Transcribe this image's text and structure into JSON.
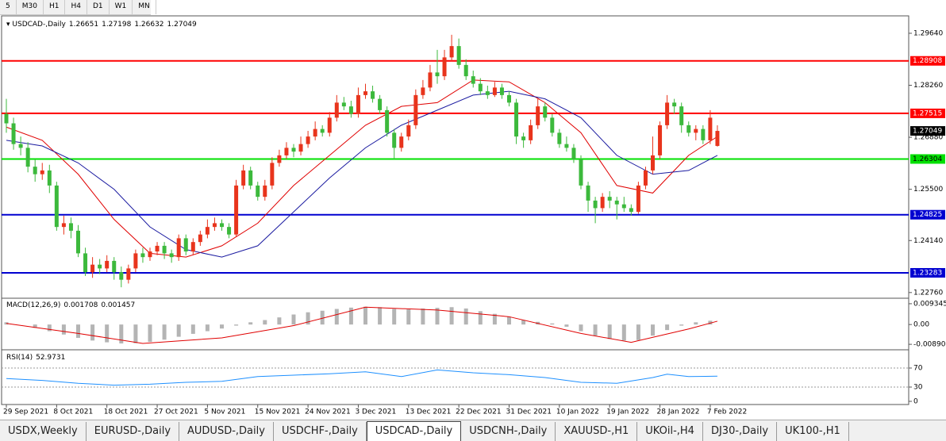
{
  "toolbar": {
    "timeframes": [
      "5",
      "M30",
      "H1",
      "H4",
      "D1",
      "W1",
      "MN"
    ]
  },
  "chart_data": [
    {
      "type": "candlestick",
      "title": "USDCAD-,Daily",
      "up_color": "#e8341c",
      "down_color": "#3cb93c",
      "categories": [
        "29 Sep 2021",
        null,
        null,
        null,
        null,
        null,
        null,
        "8 Oct 2021",
        null,
        null,
        null,
        null,
        null,
        null,
        "18 Oct 2021",
        null,
        null,
        null,
        null,
        null,
        null,
        "27 Oct 2021",
        null,
        null,
        null,
        null,
        null,
        null,
        "5 Nov 2021",
        null,
        null,
        null,
        null,
        null,
        null,
        "15 Nov 2021",
        null,
        null,
        null,
        null,
        null,
        null,
        "24 Nov 2021",
        null,
        null,
        null,
        null,
        null,
        null,
        "3 Dec 2021",
        null,
        null,
        null,
        null,
        null,
        null,
        "13 Dec 2021",
        null,
        null,
        null,
        null,
        null,
        null,
        "22 Dec 2021",
        null,
        null,
        null,
        null,
        null,
        null,
        "31 Dec 2021",
        null,
        null,
        null,
        null,
        null,
        null,
        "10 Jan 2022",
        null,
        null,
        null,
        null,
        null,
        null,
        "19 Jan 2022",
        null,
        null,
        null,
        null,
        null,
        null,
        "28 Jan 2022",
        null,
        null,
        null,
        null,
        null,
        null,
        "7 Feb 2022",
        null
      ],
      "candles": [
        [
          1.275,
          1.279,
          1.27,
          1.2725
        ],
        [
          1.2725,
          1.274,
          1.2655,
          1.267
        ],
        [
          1.267,
          1.269,
          1.264,
          1.266
        ],
        [
          1.266,
          1.2675,
          1.2595,
          1.261
        ],
        [
          1.261,
          1.263,
          1.257,
          1.259
        ],
        [
          1.259,
          1.262,
          1.2575,
          1.26
        ],
        [
          1.26,
          1.2615,
          1.254,
          1.256
        ],
        [
          1.256,
          1.257,
          1.244,
          1.245
        ],
        [
          1.245,
          1.248,
          1.243,
          1.246
        ],
        [
          1.246,
          1.2475,
          1.242,
          1.244
        ],
        [
          1.244,
          1.2455,
          1.237,
          1.238
        ],
        [
          1.238,
          1.2395,
          1.232,
          1.233
        ],
        [
          1.233,
          1.237,
          1.2315,
          1.235
        ],
        [
          1.235,
          1.2365,
          1.2325,
          1.234
        ],
        [
          1.234,
          1.2375,
          1.233,
          1.236
        ],
        [
          1.236,
          1.237,
          1.231,
          1.233
        ],
        [
          1.233,
          1.2345,
          1.229,
          1.231
        ],
        [
          1.231,
          1.235,
          1.23,
          1.234
        ],
        [
          1.234,
          1.239,
          1.233,
          1.238
        ],
        [
          1.238,
          1.2395,
          1.2355,
          1.237
        ],
        [
          1.237,
          1.2395,
          1.236,
          1.2385
        ],
        [
          1.2385,
          1.241,
          1.2375,
          1.24
        ],
        [
          1.24,
          1.241,
          1.2365,
          1.238
        ],
        [
          1.238,
          1.239,
          1.2355,
          1.237
        ],
        [
          1.237,
          1.243,
          1.236,
          1.242
        ],
        [
          1.242,
          1.243,
          1.2375,
          1.2385
        ],
        [
          1.2385,
          1.242,
          1.2375,
          1.241
        ],
        [
          1.241,
          1.244,
          1.24,
          1.243
        ],
        [
          1.243,
          1.247,
          1.242,
          1.245
        ],
        [
          1.245,
          1.2475,
          1.244,
          1.246
        ],
        [
          1.246,
          1.247,
          1.244,
          1.245
        ],
        [
          1.245,
          1.246,
          1.242,
          1.243
        ],
        [
          1.243,
          1.2575,
          1.2425,
          1.256
        ],
        [
          1.256,
          1.2615,
          1.255,
          1.26
        ],
        [
          1.26,
          1.261,
          1.255,
          1.256
        ],
        [
          1.256,
          1.257,
          1.252,
          1.253
        ],
        [
          1.253,
          1.2575,
          1.252,
          1.256
        ],
        [
          1.256,
          1.2635,
          1.255,
          1.262
        ],
        [
          1.262,
          1.2655,
          1.261,
          1.264
        ],
        [
          1.264,
          1.2675,
          1.263,
          1.266
        ],
        [
          1.266,
          1.267,
          1.2635,
          1.265
        ],
        [
          1.265,
          1.269,
          1.264,
          1.267
        ],
        [
          1.267,
          1.2705,
          1.266,
          1.269
        ],
        [
          1.269,
          1.273,
          1.268,
          1.271
        ],
        [
          1.271,
          1.272,
          1.269,
          1.27
        ],
        [
          1.27,
          1.2755,
          1.269,
          1.274
        ],
        [
          1.274,
          1.28,
          1.273,
          1.278
        ],
        [
          1.278,
          1.2795,
          1.276,
          1.277
        ],
        [
          1.277,
          1.2785,
          1.274,
          1.275
        ],
        [
          1.275,
          1.282,
          1.274,
          1.28
        ],
        [
          1.28,
          1.283,
          1.279,
          1.281
        ],
        [
          1.281,
          1.2825,
          1.278,
          1.279
        ],
        [
          1.279,
          1.28,
          1.275,
          1.276
        ],
        [
          1.276,
          1.277,
          1.269,
          1.27
        ],
        [
          1.27,
          1.271,
          1.263,
          1.266
        ],
        [
          1.266,
          1.27,
          1.265,
          1.269
        ],
        [
          1.269,
          1.2735,
          1.268,
          1.272
        ],
        [
          1.272,
          1.2815,
          1.271,
          1.28
        ],
        [
          1.28,
          1.284,
          1.279,
          1.282
        ],
        [
          1.282,
          1.288,
          1.281,
          1.286
        ],
        [
          1.286,
          1.292,
          1.283,
          1.285
        ],
        [
          1.285,
          1.292,
          1.284,
          1.29
        ],
        [
          1.29,
          1.296,
          1.289,
          1.293
        ],
        [
          1.293,
          1.295,
          1.287,
          1.288
        ],
        [
          1.288,
          1.2895,
          1.284,
          1.285
        ],
        [
          1.285,
          1.2865,
          1.282,
          1.283
        ],
        [
          1.283,
          1.2845,
          1.28,
          1.281
        ],
        [
          1.281,
          1.2825,
          1.279,
          1.28
        ],
        [
          1.28,
          1.2835,
          1.2795,
          1.282
        ],
        [
          1.282,
          1.283,
          1.279,
          1.28
        ],
        [
          1.28,
          1.281,
          1.277,
          1.278
        ],
        [
          1.278,
          1.279,
          1.267,
          1.269
        ],
        [
          1.269,
          1.27,
          1.266,
          1.268
        ],
        [
          1.268,
          1.2735,
          1.267,
          1.272
        ],
        [
          1.272,
          1.279,
          1.271,
          1.277
        ],
        [
          1.277,
          1.278,
          1.273,
          1.274
        ],
        [
          1.274,
          1.275,
          1.269,
          1.27
        ],
        [
          1.27,
          1.271,
          1.266,
          1.267
        ],
        [
          1.267,
          1.269,
          1.265,
          1.266
        ],
        [
          1.266,
          1.267,
          1.262,
          1.263
        ],
        [
          1.263,
          1.264,
          1.255,
          1.256
        ],
        [
          1.256,
          1.257,
          1.249,
          1.252
        ],
        [
          1.252,
          1.253,
          1.246,
          1.25
        ],
        [
          1.25,
          1.254,
          1.249,
          1.253
        ],
        [
          1.253,
          1.2545,
          1.25,
          1.252
        ],
        [
          1.252,
          1.253,
          1.247,
          1.251
        ],
        [
          1.251,
          1.253,
          1.249,
          1.25
        ],
        [
          1.25,
          1.251,
          1.248,
          1.249
        ],
        [
          1.249,
          1.257,
          1.2485,
          1.256
        ],
        [
          1.256,
          1.261,
          1.255,
          1.26
        ],
        [
          1.26,
          1.269,
          1.259,
          1.264
        ],
        [
          1.264,
          1.273,
          1.263,
          1.272
        ],
        [
          1.272,
          1.28,
          1.271,
          1.278
        ],
        [
          1.278,
          1.279,
          1.275,
          1.277
        ],
        [
          1.277,
          1.278,
          1.27,
          1.272
        ],
        [
          1.272,
          1.273,
          1.269,
          1.27
        ],
        [
          1.27,
          1.272,
          1.268,
          1.271
        ],
        [
          1.271,
          1.272,
          1.267,
          1.268
        ],
        [
          1.268,
          1.276,
          1.267,
          1.274
        ],
        [
          1.26651,
          1.27198,
          1.26632,
          1.27049
        ]
      ],
      "lines": [
        {
          "color": "#e00000",
          "x": [
            0,
            5,
            10,
            15,
            20,
            25,
            30,
            35,
            40,
            45,
            50,
            55,
            60,
            65,
            70,
            75,
            80,
            85,
            90,
            95,
            99
          ],
          "values": [
            1.2715,
            1.268,
            1.259,
            1.247,
            1.238,
            1.237,
            1.24,
            1.246,
            1.256,
            1.264,
            1.272,
            1.277,
            1.278,
            1.284,
            1.2835,
            1.278,
            1.27,
            1.256,
            1.254,
            1.264,
            1.269
          ]
        },
        {
          "color": "#1a1aa0",
          "x": [
            0,
            5,
            10,
            15,
            20,
            25,
            30,
            35,
            40,
            45,
            50,
            55,
            60,
            65,
            70,
            75,
            80,
            85,
            90,
            95,
            99
          ],
          "values": [
            1.268,
            1.2665,
            1.262,
            1.255,
            1.245,
            1.239,
            1.237,
            1.24,
            1.249,
            1.258,
            1.266,
            1.272,
            1.276,
            1.28,
            1.281,
            1.279,
            1.274,
            1.264,
            1.259,
            1.26,
            1.264
          ]
        }
      ],
      "levels": [
        {
          "value": 1.28908,
          "color": "#ff0000"
        },
        {
          "value": 1.27515,
          "color": "#ff0000"
        },
        {
          "value": 1.26304,
          "color": "#00e000"
        },
        {
          "value": 1.24825,
          "color": "#0000d0"
        },
        {
          "value": 1.23283,
          "color": "#0000d0"
        }
      ],
      "ylim": [
        1.2263,
        1.3006
      ],
      "yticks": [
        {
          "value": 1.2964,
          "label": "1.29640"
        },
        {
          "value": 1.2826,
          "label": "1.28260"
        },
        {
          "value": 1.2688,
          "label": "1.26880"
        },
        {
          "value": 1.255,
          "label": "1.25500"
        },
        {
          "value": 1.2414,
          "label": "1.24140"
        },
        {
          "value": 1.2276,
          "label": "1.22760"
        }
      ]
    },
    {
      "type": "macd",
      "title": "MACD(12,26,9)",
      "current": [
        0.001708,
        0.001457
      ],
      "color": "#b4b4b4",
      "x": [
        0,
        2,
        4,
        6,
        8,
        10,
        12,
        14,
        16,
        18,
        20,
        22,
        24,
        26,
        28,
        30,
        32,
        34,
        36,
        38,
        40,
        42,
        44,
        46,
        48,
        50,
        52,
        54,
        56,
        58,
        60,
        62,
        64,
        66,
        68,
        70,
        72,
        74,
        76,
        78,
        80,
        82,
        84,
        86,
        88,
        90,
        92,
        94,
        96,
        98
      ],
      "values": [
        0.001,
        0.0,
        -0.0015,
        -0.003,
        -0.0045,
        -0.006,
        -0.0072,
        -0.008,
        -0.0085,
        -0.0084,
        -0.0078,
        -0.0068,
        -0.0055,
        -0.0042,
        -0.003,
        -0.0018,
        -0.0005,
        0.001,
        0.002,
        0.0032,
        0.0045,
        0.0055,
        0.0062,
        0.007,
        0.0076,
        0.008,
        0.0078,
        0.007,
        0.0068,
        0.0072,
        0.0075,
        0.0078,
        0.0072,
        0.006,
        0.0048,
        0.0035,
        0.002,
        0.0012,
        0.0005,
        -0.001,
        -0.003,
        -0.005,
        -0.0065,
        -0.0072,
        -0.007,
        -0.005,
        -0.0025,
        -0.0005,
        0.001,
        0.0017
      ],
      "signal": {
        "color": "#e00000",
        "x": [
          0,
          10,
          19,
          30,
          40,
          50,
          60,
          70,
          80,
          87,
          95,
          99
        ],
        "values": [
          0.0005,
          -0.004,
          -0.0085,
          -0.006,
          -0.0005,
          0.0078,
          0.0065,
          0.0035,
          -0.004,
          -0.008,
          -0.002,
          0.0015
        ]
      },
      "ylim": [
        -0.011,
        0.0111
      ],
      "yticks": [
        0.009345,
        {
          "value": 0,
          "label": "0.00"
        },
        {
          "value": -0.0089,
          "label": "-0.00890"
        }
      ]
    },
    {
      "type": "line",
      "title": "RSI(14)",
      "current": 52.9731,
      "color": "#1e90ff",
      "grid": true,
      "x": [
        0,
        5,
        10,
        15,
        20,
        25,
        30,
        35,
        40,
        45,
        50,
        55,
        60,
        65,
        70,
        75,
        80,
        85,
        90,
        92,
        95,
        99
      ],
      "values": [
        48,
        44,
        38,
        34,
        36,
        40,
        42,
        52,
        55,
        58,
        62,
        52,
        66,
        60,
        56,
        50,
        40,
        38,
        50,
        57,
        52,
        52.9731
      ],
      "ylim": [
        0,
        100
      ],
      "yticks": [
        70,
        30,
        0
      ]
    }
  ],
  "tabs": [
    "USDX,Weekly",
    "EURUSD-,Daily",
    "AUDUSD-,Daily",
    "USDCHF-,Daily",
    "USDCAD-,Daily",
    "USDCNH-,Daily",
    "XAUUSD-,H1",
    "UKOil-,H4",
    "DJ30-,Daily",
    "UK100-,H1"
  ],
  "active_tab": 4
}
